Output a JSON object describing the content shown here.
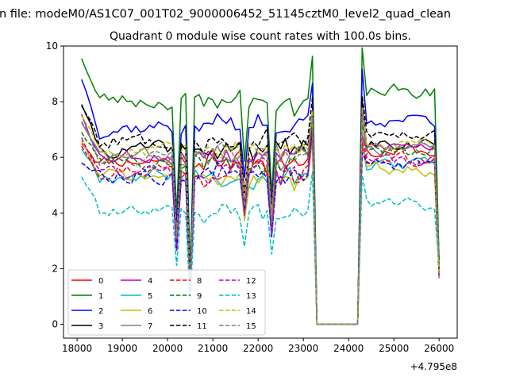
{
  "figure": {
    "suptitle": "n file: modeM0/AS1C07_001T02_9000006452_51145cztM0_level2_quad_clean",
    "offset_label": "+4.795e8"
  },
  "chart_data": {
    "type": "line",
    "title": "Quadrant 0 module wise count rates with 100.0s bins.",
    "xlabel": "",
    "ylabel": "",
    "xlim": [
      17700,
      26400
    ],
    "ylim": [
      -0.5,
      10.0
    ],
    "x_offset": 479500000,
    "xticks": [
      18000,
      19000,
      20000,
      21000,
      22000,
      23000,
      24000,
      25000,
      26000
    ],
    "xtick_labels": [
      "18000",
      "19000",
      "20000",
      "21000",
      "22000",
      "23000",
      "24000",
      "25000",
      "26000"
    ],
    "yticks": [
      0,
      2,
      4,
      6,
      8,
      10
    ],
    "ytick_labels": [
      "0",
      "2",
      "4",
      "6",
      "8",
      "10"
    ],
    "grid": false,
    "legend_position": "lower-left",
    "series": [
      {
        "name": "0",
        "color": "#ff0000",
        "dash": "solid",
        "baseline": 5.9,
        "amp": 0.35,
        "seed": 11,
        "start": 6.5
      },
      {
        "name": "1",
        "color": "#008000",
        "dash": "solid",
        "baseline": 8.05,
        "amp": 0.4,
        "seed": 23,
        "start": 9.55
      },
      {
        "name": "2",
        "color": "#0000ff",
        "dash": "solid",
        "baseline": 7.1,
        "amp": 0.4,
        "seed": 37,
        "start": 8.8
      },
      {
        "name": "3",
        "color": "#000000",
        "dash": "solid",
        "baseline": 6.25,
        "amp": 0.35,
        "seed": 41,
        "start": 7.9
      },
      {
        "name": "4",
        "color": "#bf00bf",
        "dash": "solid",
        "baseline": 6.1,
        "amp": 0.35,
        "seed": 53,
        "start": 7.55
      },
      {
        "name": "5",
        "color": "#00bfbf",
        "dash": "solid",
        "baseline": 5.4,
        "amp": 0.35,
        "seed": 67,
        "start": 6.3
      },
      {
        "name": "6",
        "color": "#bfbf00",
        "dash": "solid",
        "baseline": 5.3,
        "amp": 0.35,
        "seed": 71,
        "start": 6.6
      },
      {
        "name": "7",
        "color": "#808080",
        "dash": "solid",
        "baseline": 6.0,
        "amp": 0.35,
        "seed": 83,
        "start": 7.25
      },
      {
        "name": "8",
        "color": "#ff0000",
        "dash": "dashed",
        "baseline": 5.6,
        "amp": 0.35,
        "seed": 97,
        "start": 6.4
      },
      {
        "name": "9",
        "color": "#008000",
        "dash": "dashed",
        "baseline": 5.85,
        "amp": 0.35,
        "seed": 101,
        "start": 6.9
      },
      {
        "name": "10",
        "color": "#0000ff",
        "dash": "dashed",
        "baseline": 5.4,
        "amp": 0.35,
        "seed": 113,
        "start": 5.8
      },
      {
        "name": "11",
        "color": "#000000",
        "dash": "dashed",
        "baseline": 6.6,
        "amp": 0.4,
        "seed": 127,
        "start": 7.85
      },
      {
        "name": "12",
        "color": "#bf00bf",
        "dash": "dashed",
        "baseline": 5.5,
        "amp": 0.35,
        "seed": 131,
        "start": 6.7
      },
      {
        "name": "13",
        "color": "#00bfbf",
        "dash": "dashed",
        "baseline": 4.0,
        "amp": 0.3,
        "seed": 139,
        "start": 5.3
      },
      {
        "name": "14",
        "color": "#bfbf00",
        "dash": "dashed",
        "baseline": 6.3,
        "amp": 0.35,
        "seed": 149,
        "start": 7.5
      },
      {
        "name": "15",
        "color": "#808080",
        "dash": "dashed",
        "baseline": 6.0,
        "amp": 0.35,
        "seed": 151,
        "start": 7.3
      }
    ],
    "features": {
      "bin_seconds": 100,
      "segment1": [
        18100,
        23200
      ],
      "gap_zero": [
        23300,
        24200
      ],
      "segment2": [
        24300,
        26000
      ],
      "dips": [
        {
          "x": 20200,
          "depth": 0.5
        },
        {
          "x": 20500,
          "depth": 0.78
        },
        {
          "x": 21700,
          "depth": 0.25
        },
        {
          "x": 22300,
          "depth": 0.4
        }
      ],
      "segment2_boost": 0.3
    }
  }
}
